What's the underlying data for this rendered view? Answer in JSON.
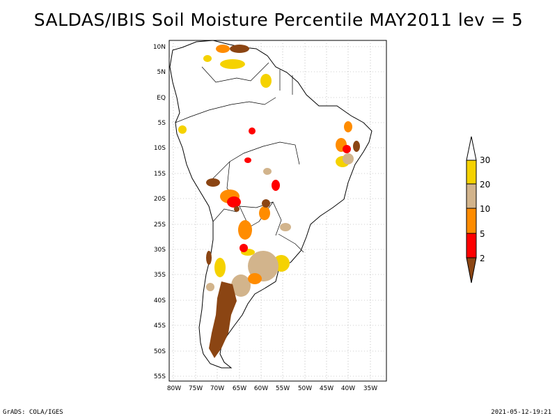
{
  "title": "SALDAS/IBIS Soil Moisture Percentile MAY2011 lev = 5",
  "map": {
    "region": "South America",
    "variable": "Soil Moisture Percentile",
    "lat_labels": [
      "10N",
      "5N",
      "EQ",
      "5S",
      "10S",
      "15S",
      "20S",
      "25S",
      "30S",
      "35S",
      "40S",
      "45S",
      "50S",
      "55S"
    ],
    "lon_labels": [
      "80W",
      "75W",
      "70W",
      "65W",
      "60W",
      "55W",
      "50W",
      "45W",
      "40W",
      "35W"
    ],
    "grid": true
  },
  "legend": {
    "labels": [
      "30",
      "20",
      "10",
      "5",
      "2"
    ],
    "colors": {
      "gt30": "#ffffff",
      "20_30": "#f5d200",
      "10_20": "#d2b48c",
      "5_10": "#ff8c00",
      "2_5": "#ff0000",
      "lt2": "#8b4513"
    }
  },
  "footer": {
    "left": "GrADS: COLA/IGES",
    "right": "2021-05-12-19:21"
  }
}
